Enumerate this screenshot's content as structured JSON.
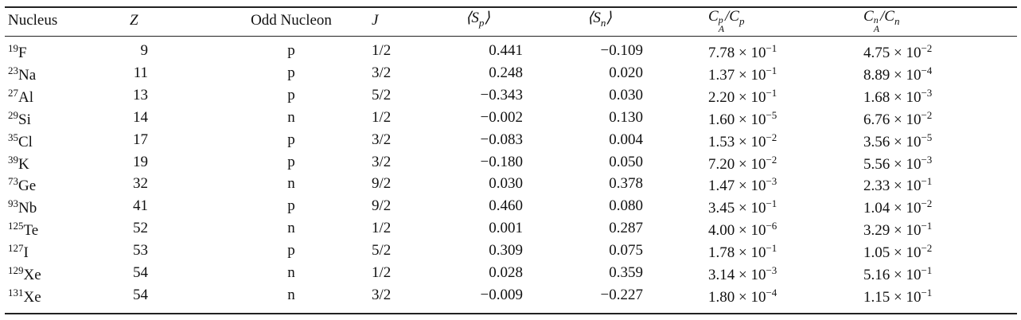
{
  "table": {
    "header": [
      [
        {
          "t": "Nucleus"
        }
      ],
      [
        {
          "t": "Z"
        }
      ],
      [
        {
          "t": "Odd Nucleon"
        }
      ],
      [
        {
          "t": "J"
        }
      ],
      [
        {
          "t": "⟨S"
        },
        {
          "sub": "p"
        },
        {
          "t": "⟩"
        }
      ],
      [
        {
          "t": "⟨S"
        },
        {
          "sub": "n"
        },
        {
          "t": "⟩"
        }
      ],
      [
        {
          "t": "C"
        },
        {
          "sup": "p",
          "sub": "A"
        },
        {
          "t": "/C"
        },
        {
          "sub": "p"
        }
      ],
      [
        {
          "t": "C"
        },
        {
          "sup": "n",
          "sub": "A"
        },
        {
          "t": "/C"
        },
        {
          "sub": "n"
        }
      ]
    ],
    "rows": [
      [
        [
          {
            "sup": "19"
          },
          {
            "t": "F"
          }
        ],
        "9",
        "p",
        "1/2",
        "0.441",
        "−0.109",
        [
          {
            "t": "7.78 × 10"
          },
          {
            "sup": "−1"
          }
        ],
        [
          {
            "t": "4.75 × 10"
          },
          {
            "sup": "−2"
          }
        ]
      ],
      [
        [
          {
            "sup": "23"
          },
          {
            "t": "Na"
          }
        ],
        "11",
        "p",
        "3/2",
        "0.248",
        "0.020",
        [
          {
            "t": "1.37 × 10"
          },
          {
            "sup": "−1"
          }
        ],
        [
          {
            "t": "8.89 × 10"
          },
          {
            "sup": "−4"
          }
        ]
      ],
      [
        [
          {
            "sup": "27"
          },
          {
            "t": "Al"
          }
        ],
        "13",
        "p",
        "5/2",
        "−0.343",
        "0.030",
        [
          {
            "t": "2.20 × 10"
          },
          {
            "sup": "−1"
          }
        ],
        [
          {
            "t": "1.68 × 10"
          },
          {
            "sup": "−3"
          }
        ]
      ],
      [
        [
          {
            "sup": "29"
          },
          {
            "t": "Si"
          }
        ],
        "14",
        "n",
        "1/2",
        "−0.002",
        "0.130",
        [
          {
            "t": "1.60 × 10"
          },
          {
            "sup": "−5"
          }
        ],
        [
          {
            "t": "6.76 × 10"
          },
          {
            "sup": "−2"
          }
        ]
      ],
      [
        [
          {
            "sup": "35"
          },
          {
            "t": "Cl"
          }
        ],
        "17",
        "p",
        "3/2",
        "−0.083",
        "0.004",
        [
          {
            "t": "1.53 × 10"
          },
          {
            "sup": "−2"
          }
        ],
        [
          {
            "t": "3.56 × 10"
          },
          {
            "sup": "−5"
          }
        ]
      ],
      [
        [
          {
            "sup": "39"
          },
          {
            "t": "K"
          }
        ],
        "19",
        "p",
        "3/2",
        "−0.180",
        "0.050",
        [
          {
            "t": "7.20 × 10"
          },
          {
            "sup": "−2"
          }
        ],
        [
          {
            "t": "5.56 × 10"
          },
          {
            "sup": "−3"
          }
        ]
      ],
      [
        [
          {
            "sup": "73"
          },
          {
            "t": "Ge"
          }
        ],
        "32",
        "n",
        "9/2",
        "0.030",
        "0.378",
        [
          {
            "t": "1.47 × 10"
          },
          {
            "sup": "−3"
          }
        ],
        [
          {
            "t": "2.33 × 10"
          },
          {
            "sup": "−1"
          }
        ]
      ],
      [
        [
          {
            "sup": "93"
          },
          {
            "t": "Nb"
          }
        ],
        "41",
        "p",
        "9/2",
        "0.460",
        "0.080",
        [
          {
            "t": "3.45 × 10"
          },
          {
            "sup": "−1"
          }
        ],
        [
          {
            "t": "1.04 × 10"
          },
          {
            "sup": "−2"
          }
        ]
      ],
      [
        [
          {
            "sup": "125"
          },
          {
            "t": "Te"
          }
        ],
        "52",
        "n",
        "1/2",
        "0.001",
        "0.287",
        [
          {
            "t": "4.00 × 10"
          },
          {
            "sup": "−6"
          }
        ],
        [
          {
            "t": "3.29 × 10"
          },
          {
            "sup": "−1"
          }
        ]
      ],
      [
        [
          {
            "sup": "127"
          },
          {
            "t": "I"
          }
        ],
        "53",
        "p",
        "5/2",
        "0.309",
        "0.075",
        [
          {
            "t": "1.78 × 10"
          },
          {
            "sup": "−1"
          }
        ],
        [
          {
            "t": "1.05 × 10"
          },
          {
            "sup": "−2"
          }
        ]
      ],
      [
        [
          {
            "sup": "129"
          },
          {
            "t": "Xe"
          }
        ],
        "54",
        "n",
        "1/2",
        "0.028",
        "0.359",
        [
          {
            "t": "3.14 × 10"
          },
          {
            "sup": "−3"
          }
        ],
        [
          {
            "t": "5.16 × 10"
          },
          {
            "sup": "−1"
          }
        ]
      ],
      [
        [
          {
            "sup": "131"
          },
          {
            "t": "Xe"
          }
        ],
        "54",
        "n",
        "3/2",
        "−0.009",
        "−0.227",
        [
          {
            "t": "1.80 × 10"
          },
          {
            "sup": "−4"
          }
        ],
        [
          {
            "t": "1.15 × 10"
          },
          {
            "sup": "−1"
          }
        ]
      ]
    ]
  }
}
